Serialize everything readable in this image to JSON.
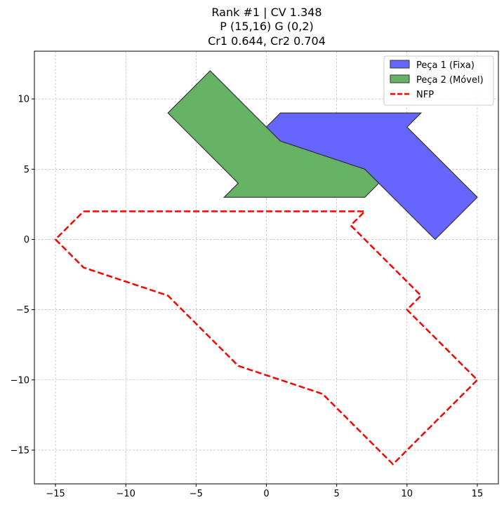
{
  "chart_data": {
    "type": "area",
    "title_lines": [
      "Rank #1 | CV 1.348",
      "P (15,16) G (0,2)",
      "Cr1 0.644, Cr2 0.704"
    ],
    "xlim": [
      -16.5,
      16.5
    ],
    "ylim": [
      -17.4,
      13.4
    ],
    "xticks": [
      -15,
      -10,
      -5,
      0,
      5,
      10,
      15
    ],
    "yticks": [
      -15,
      -10,
      -5,
      0,
      5,
      10
    ],
    "xtick_labels": [
      "−15",
      "−10",
      "−5",
      "0",
      "5",
      "10",
      "15"
    ],
    "ytick_labels": [
      "−15",
      "−10",
      "−5",
      "0",
      "5",
      "10"
    ],
    "grid": true,
    "legend_position": "top-right",
    "series": [
      {
        "name": "Peça 1 (Fixa)",
        "kind": "polygon",
        "color": "#6666ff",
        "points": [
          [
            0,
            8
          ],
          [
            1,
            9
          ],
          [
            11,
            9
          ],
          [
            10,
            8
          ],
          [
            15,
            3
          ],
          [
            12,
            0
          ],
          [
            7,
            5
          ],
          [
            1,
            7
          ]
        ]
      },
      {
        "name": "Peça 2 (Móvel)",
        "kind": "polygon",
        "color": "#66b366",
        "points": [
          [
            -7,
            9
          ],
          [
            -4,
            12
          ],
          [
            1,
            7
          ],
          [
            7,
            5
          ],
          [
            8,
            4
          ],
          [
            7,
            3
          ],
          [
            -3,
            3
          ],
          [
            -2,
            4
          ]
        ]
      },
      {
        "name": "NFP",
        "kind": "dashed-line",
        "color": "#ff0000",
        "points": [
          [
            -13,
            2
          ],
          [
            7,
            2
          ],
          [
            6,
            1
          ],
          [
            11,
            -4
          ],
          [
            10,
            -5
          ],
          [
            15,
            -10
          ],
          [
            9,
            -16
          ],
          [
            4,
            -11
          ],
          [
            -2,
            -9
          ],
          [
            -7,
            -4
          ],
          [
            -13,
            -2
          ],
          [
            -15,
            0
          ],
          [
            -13,
            2
          ]
        ]
      }
    ]
  }
}
